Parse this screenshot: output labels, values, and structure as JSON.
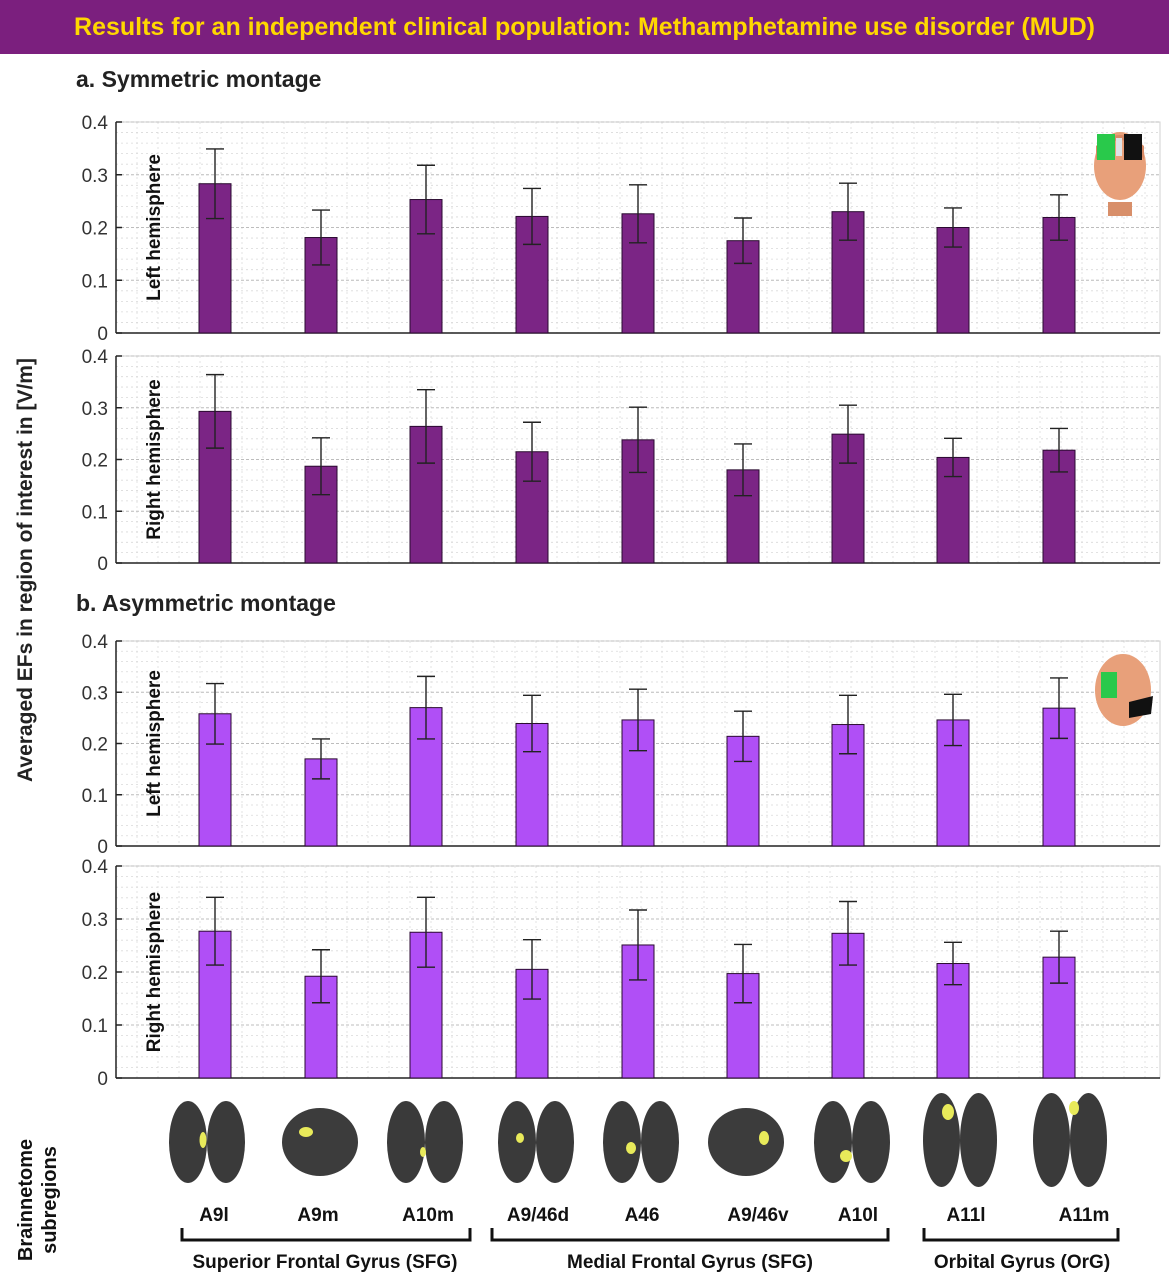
{
  "banner": {
    "title": "Results for an independent clinical population: Methamphetamine use disorder (MUD)"
  },
  "sections": {
    "a": "a. Symmetric montage",
    "b": "b. Asymmetric montage"
  },
  "y_axis_label": "Averaged EFs in region of interest in [V/m]",
  "row_label": [
    "Brainnetome",
    "subregions"
  ],
  "regions": [
    "A9l",
    "A9m",
    "A10m",
    "A9/46d",
    "A46",
    "A9/46v",
    "A10l",
    "A11l",
    "A11m"
  ],
  "groups": [
    "Superior Frontal Gyrus (SFG)",
    "Medial Frontal Gyrus (SFG)",
    "Orbital Gyrus (OrG)"
  ],
  "colors": {
    "symmetric": "#7b2585",
    "asymmetric": "#b04ff6",
    "banner": "#7b1f7e",
    "banner_text": "#ffd700"
  },
  "chart_data": [
    {
      "type": "bar",
      "panel": "a",
      "label": "Left hemisphere",
      "categories": [
        "A9l",
        "A9m",
        "A10m",
        "A9/46d",
        "A46",
        "A9/46v",
        "A10l",
        "A11l",
        "A11m"
      ],
      "values": [
        0.283,
        0.181,
        0.253,
        0.221,
        0.226,
        0.175,
        0.23,
        0.2,
        0.219
      ],
      "errors": [
        0.066,
        0.052,
        0.065,
        0.053,
        0.055,
        0.043,
        0.054,
        0.037,
        0.043
      ],
      "yticks": [
        "0",
        "0.1",
        "0.2",
        "0.3",
        "0.4"
      ],
      "ylim": [
        0,
        0.4
      ],
      "grid": true
    },
    {
      "type": "bar",
      "panel": "a",
      "label": "Right hemisphere",
      "categories": [
        "A9l",
        "A9m",
        "A10m",
        "A9/46d",
        "A46",
        "A9/46v",
        "A10l",
        "A11l",
        "A11m"
      ],
      "values": [
        0.293,
        0.187,
        0.264,
        0.215,
        0.238,
        0.18,
        0.249,
        0.204,
        0.218
      ],
      "errors": [
        0.071,
        0.055,
        0.071,
        0.057,
        0.063,
        0.05,
        0.056,
        0.037,
        0.042
      ],
      "yticks": [
        "0",
        "0.1",
        "0.2",
        "0.3",
        "0.4"
      ],
      "ylim": [
        0,
        0.4
      ],
      "grid": true
    },
    {
      "type": "bar",
      "panel": "b",
      "label": "Left hemisphere",
      "categories": [
        "A9l",
        "A9m",
        "A10m",
        "A9/46d",
        "A46",
        "A9/46v",
        "A10l",
        "A11l",
        "A11m"
      ],
      "values": [
        0.258,
        0.17,
        0.27,
        0.239,
        0.246,
        0.214,
        0.237,
        0.246,
        0.269
      ],
      "errors": [
        0.059,
        0.039,
        0.061,
        0.055,
        0.06,
        0.049,
        0.057,
        0.05,
        0.059
      ],
      "yticks": [
        "0",
        "0.1",
        "0.2",
        "0.3",
        "0.4"
      ],
      "ylim": [
        0,
        0.4
      ],
      "grid": true
    },
    {
      "type": "bar",
      "panel": "b",
      "label": "Right hemisphere",
      "categories": [
        "A9l",
        "A9m",
        "A10m",
        "A9/46d",
        "A46",
        "A9/46v",
        "A10l",
        "A11l",
        "A11m"
      ],
      "values": [
        0.277,
        0.192,
        0.275,
        0.205,
        0.251,
        0.197,
        0.273,
        0.216,
        0.228
      ],
      "errors": [
        0.064,
        0.05,
        0.066,
        0.056,
        0.066,
        0.055,
        0.06,
        0.04,
        0.049
      ],
      "yticks": [
        "0",
        "0.1",
        "0.2",
        "0.3",
        "0.4"
      ],
      "ylim": [
        0,
        0.4
      ],
      "grid": true
    }
  ]
}
